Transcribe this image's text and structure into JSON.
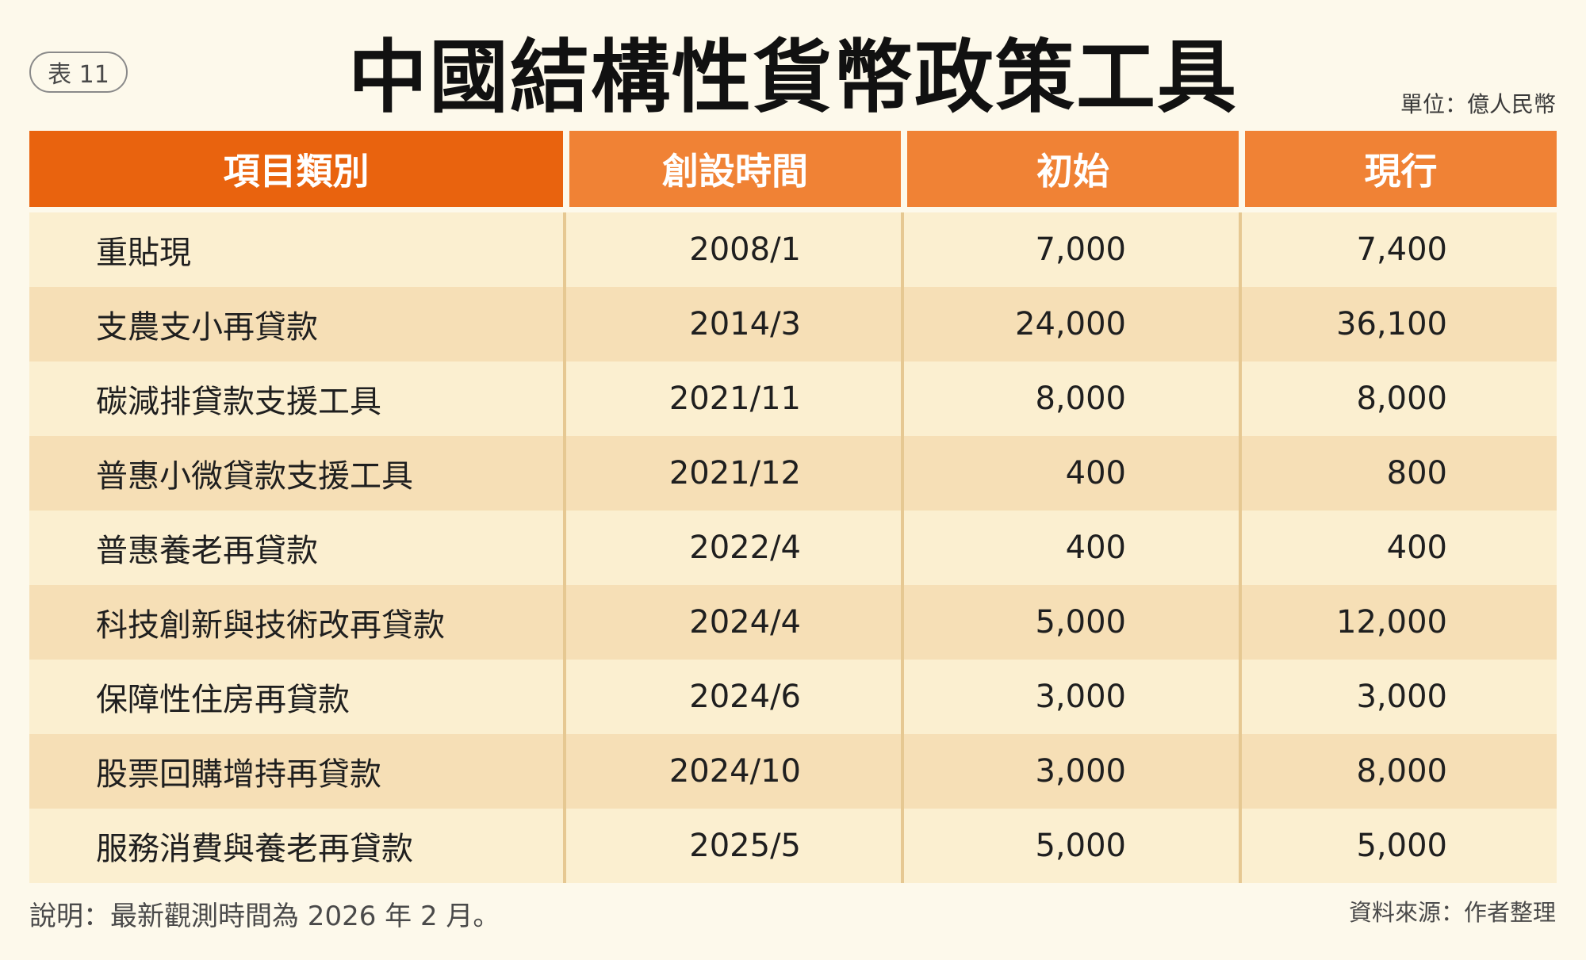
{
  "badge": "表 11",
  "title": "中國結構性貨幣政策工具",
  "unit": "單位：億人民幣",
  "table": {
    "headers": [
      "項目類別",
      "創設時間",
      "初始",
      "現行"
    ],
    "rows": [
      {
        "name": "重貼現",
        "date": "2008/1",
        "initial": "7,000",
        "current": "7,400"
      },
      {
        "name": "支農支小再貸款",
        "date": "2014/3",
        "initial": "24,000",
        "current": "36,100"
      },
      {
        "name": "碳減排貸款支援工具",
        "date": "2021/11",
        "initial": "8,000",
        "current": "8,000"
      },
      {
        "name": "普惠小微貸款支援工具",
        "date": "2021/12",
        "initial": "400",
        "current": "800"
      },
      {
        "name": "普惠養老再貸款",
        "date": "2022/4",
        "initial": "400",
        "current": "400"
      },
      {
        "name": "科技創新與技術改再貸款",
        "date": "2024/4",
        "initial": "5,000",
        "current": "12,000"
      },
      {
        "name": "保障性住房再貸款",
        "date": "2024/6",
        "initial": "3,000",
        "current": "3,000"
      },
      {
        "name": "股票回購增持再貸款",
        "date": "2024/10",
        "initial": "3,000",
        "current": "8,000"
      },
      {
        "name": "服務消費與養老再貸款",
        "date": "2025/5",
        "initial": "5,000",
        "current": "5,000"
      }
    ]
  },
  "note": "說明：最新觀測時間為 2026 年 2 月。",
  "source": "資料來源：作者整理",
  "colors": {
    "background": "#fdf9eb",
    "header_primary": "#e9630e",
    "header_secondary": "#f08235",
    "row_light": "#fbefd0",
    "row_dark": "#f6dfb6"
  }
}
